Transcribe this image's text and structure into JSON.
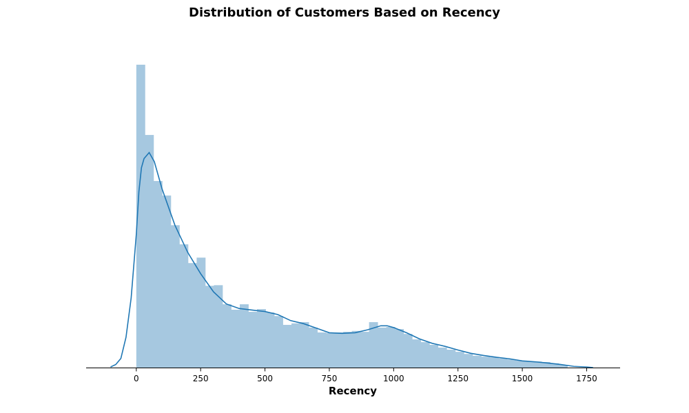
{
  "chart_data": {
    "type": "histogram",
    "title": "Distribution of Customers Based on Recency",
    "xlabel": "Recency",
    "ylabel": "",
    "xlim": [
      -195,
      1880
    ],
    "ylim": [
      0,
      1.0
    ],
    "xticks": [
      0,
      250,
      500,
      750,
      1000,
      1250,
      1500,
      1750
    ],
    "xtick_labels": [
      "0",
      "250",
      "500",
      "750",
      "1000",
      "1250",
      "1500",
      "1750"
    ],
    "y_axis_visible": false,
    "grid": false,
    "colors": {
      "bars": "#a6c8e0",
      "kde_line": "#1f77b4",
      "axis": "#000000"
    },
    "histogram": {
      "bin_width": 33.5,
      "bin_starts": [
        0,
        33.5,
        67,
        100.5,
        134,
        167.5,
        201,
        234.5,
        268,
        301.5,
        335,
        368.5,
        402,
        435.5,
        469,
        502.5,
        536,
        569.5,
        603,
        636.5,
        670,
        703.5,
        737,
        770.5,
        804,
        837.5,
        871,
        904.5,
        938,
        971.5,
        1005,
        1038.5,
        1072,
        1105.5,
        1139,
        1172.5,
        1206,
        1239.5,
        1273,
        1306.5,
        1340,
        1373.5,
        1407,
        1440.5,
        1474,
        1507.5,
        1541,
        1574.5,
        1608,
        1641.5
      ],
      "density": [
        1.0,
        0.768,
        0.616,
        0.568,
        0.47,
        0.407,
        0.345,
        0.363,
        0.27,
        0.272,
        0.209,
        0.191,
        0.209,
        0.184,
        0.193,
        0.182,
        0.17,
        0.141,
        0.146,
        0.15,
        0.132,
        0.116,
        0.114,
        0.116,
        0.118,
        0.121,
        0.118,
        0.15,
        0.132,
        0.134,
        0.127,
        0.111,
        0.093,
        0.084,
        0.075,
        0.066,
        0.059,
        0.052,
        0.045,
        0.039,
        0.036,
        0.034,
        0.03,
        0.027,
        0.023,
        0.02,
        0.02,
        0.018,
        0.014,
        0.009
      ]
    },
    "kde": {
      "name": "",
      "x": [
        -100,
        -80,
        -60,
        -40,
        -20,
        0,
        10,
        20,
        30,
        50,
        70,
        100,
        150,
        200,
        250,
        300,
        350,
        400,
        450,
        500,
        550,
        600,
        650,
        700,
        750,
        800,
        850,
        900,
        950,
        975,
        1000,
        1050,
        1100,
        1150,
        1200,
        1250,
        1300,
        1350,
        1400,
        1450,
        1500,
        1550,
        1600,
        1650,
        1700,
        1750,
        1775
      ],
      "y": [
        0.002,
        0.01,
        0.03,
        0.1,
        0.23,
        0.44,
        0.58,
        0.66,
        0.69,
        0.71,
        0.68,
        0.59,
        0.47,
        0.38,
        0.31,
        0.25,
        0.21,
        0.195,
        0.19,
        0.185,
        0.175,
        0.155,
        0.145,
        0.13,
        0.115,
        0.113,
        0.115,
        0.125,
        0.138,
        0.138,
        0.132,
        0.115,
        0.095,
        0.08,
        0.07,
        0.058,
        0.047,
        0.04,
        0.034,
        0.029,
        0.022,
        0.019,
        0.015,
        0.01,
        0.004,
        0.002,
        0.0
      ]
    }
  }
}
